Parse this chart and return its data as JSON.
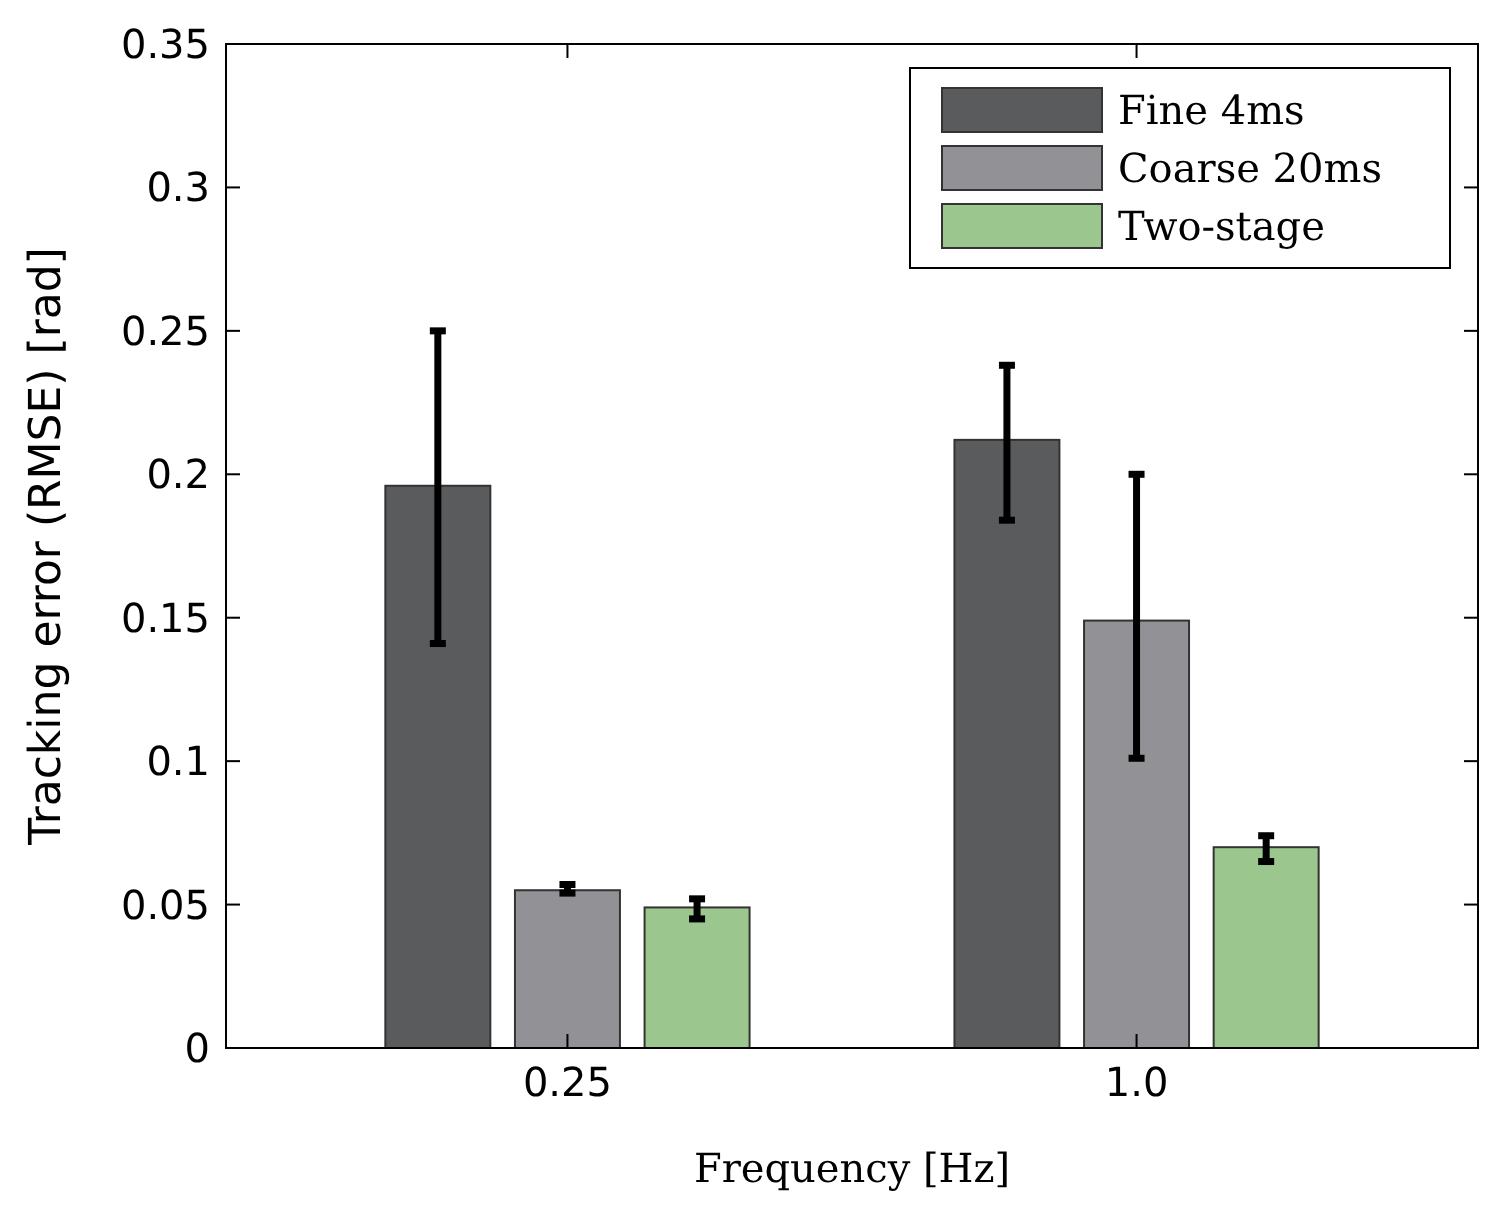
{
  "chart_data": {
    "type": "bar",
    "xlabel": "Frequency [Hz]",
    "ylabel": "Tracking error (RMSE) [rad]",
    "categories": [
      "0.25",
      "1.0"
    ],
    "series": [
      {
        "name": "Fine 4ms",
        "color": "#5a5b5d",
        "values": [
          0.196,
          0.212
        ],
        "errors": [
          [
            0.141,
            0.25
          ],
          [
            0.184,
            0.238
          ]
        ]
      },
      {
        "name": "Coarse 20ms",
        "color": "#929196",
        "values": [
          0.055,
          0.149
        ],
        "errors": [
          [
            0.054,
            0.057
          ],
          [
            0.101,
            0.2
          ]
        ]
      },
      {
        "name": "Two-stage",
        "color": "#9bc78e",
        "values": [
          0.049,
          0.07
        ],
        "errors": [
          [
            0.045,
            0.052
          ],
          [
            0.065,
            0.074
          ]
        ]
      }
    ],
    "ylim": [
      0,
      0.35
    ],
    "yticks": [
      0,
      0.05,
      0.1,
      0.15,
      0.2,
      0.25,
      0.3,
      0.35
    ],
    "grid": false,
    "legend": "top right"
  }
}
